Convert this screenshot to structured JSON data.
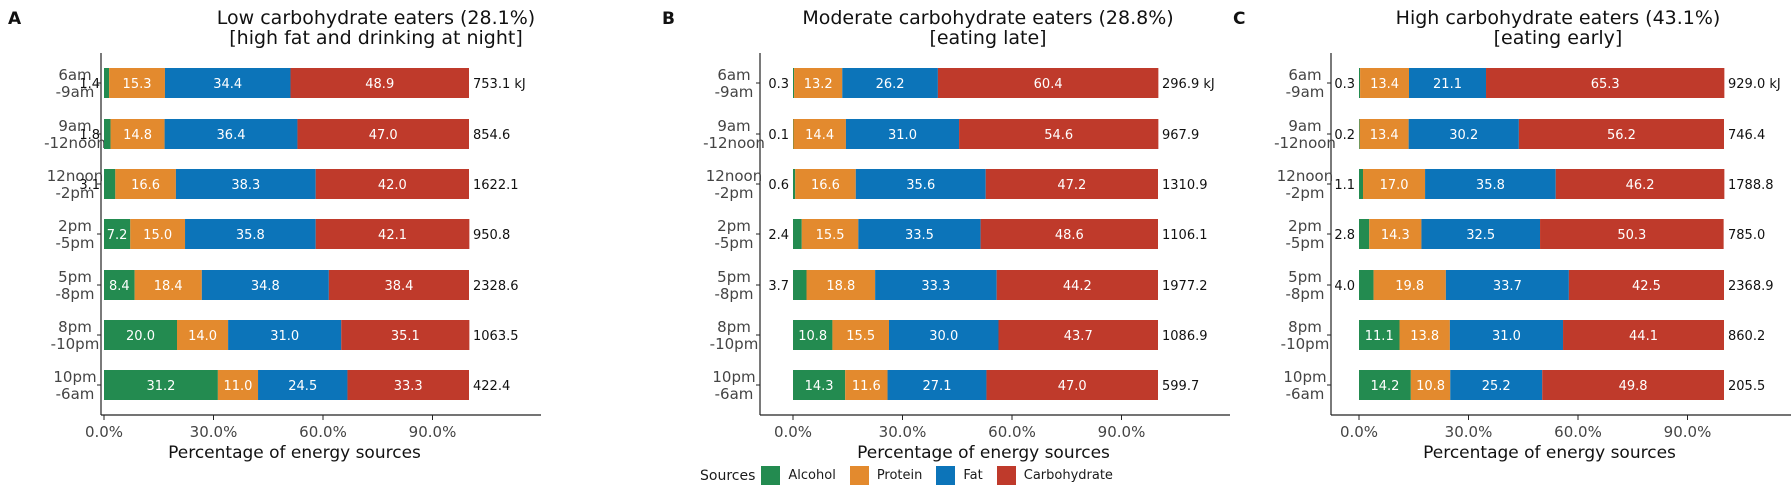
{
  "colors": {
    "Alcohol": "#238b50",
    "Protein": "#e38a2e",
    "Fat": "#0c74b9",
    "Carbohydrate": "#bf3a2b"
  },
  "legend": {
    "title": "Sources",
    "items": [
      "Alcohol",
      "Protein",
      "Fat",
      "Carbohydrate"
    ]
  },
  "chart_data": [
    {
      "type": "bar",
      "orientation": "horizontal",
      "stacked": true,
      "panel_letter": "A",
      "title_line1": "Low carbohydrate eaters (28.1%)",
      "title_line2": "[high fat and drinking at night]",
      "xlabel": "Percentage of energy sources",
      "xlim": [
        0,
        100
      ],
      "x_ticks": [
        "0.0%",
        "30.0%",
        "60.0%",
        "90.0%"
      ],
      "categories": [
        "6am -9am",
        "9am -12noon",
        "12noon -2pm",
        "2pm -5pm",
        "5pm -8pm",
        "8pm -10pm",
        "10pm -6am"
      ],
      "category_lines": [
        [
          "6am",
          "-9am"
        ],
        [
          "9am",
          "-12noon"
        ],
        [
          "12noon",
          "-2pm"
        ],
        [
          "2pm",
          "-5pm"
        ],
        [
          "5pm",
          "-8pm"
        ],
        [
          "8pm",
          "-10pm"
        ],
        [
          "10pm",
          "-6am"
        ]
      ],
      "series": [
        {
          "name": "Alcohol",
          "values": [
            1.4,
            1.8,
            3.1,
            7.2,
            8.4,
            20.0,
            31.2
          ]
        },
        {
          "name": "Protein",
          "values": [
            15.3,
            14.8,
            16.6,
            15.0,
            18.4,
            14.0,
            11.0
          ]
        },
        {
          "name": "Fat",
          "values": [
            34.4,
            36.4,
            38.3,
            35.8,
            34.8,
            31.0,
            24.5
          ]
        },
        {
          "name": "Carbohydrate",
          "values": [
            48.9,
            47.0,
            42.0,
            42.1,
            38.4,
            35.1,
            33.3
          ]
        }
      ],
      "alcohol_label_outside": [
        true,
        true,
        true,
        false,
        false,
        false,
        false
      ],
      "energy_totals": [
        "753.1 kJ",
        "854.6",
        "1622.1",
        "950.8",
        "2328.6",
        "1063.5",
        "422.4"
      ]
    },
    {
      "type": "bar",
      "orientation": "horizontal",
      "stacked": true,
      "panel_letter": "B",
      "title_line1": "Moderate carbohydrate eaters (28.8%)",
      "title_line2": "[eating late]",
      "xlabel": "Percentage of energy sources",
      "xlim": [
        0,
        100
      ],
      "x_ticks": [
        "0.0%",
        "30.0%",
        "60.0%",
        "90.0%"
      ],
      "categories": [
        "6am -9am",
        "9am -12noon",
        "12noon -2pm",
        "2pm -5pm",
        "5pm -8pm",
        "8pm -10pm",
        "10pm -6am"
      ],
      "category_lines": [
        [
          "6am",
          "-9am"
        ],
        [
          "9am",
          "-12noon"
        ],
        [
          "12noon",
          "-2pm"
        ],
        [
          "2pm",
          "-5pm"
        ],
        [
          "5pm",
          "-8pm"
        ],
        [
          "8pm",
          "-10pm"
        ],
        [
          "10pm",
          "-6am"
        ]
      ],
      "series": [
        {
          "name": "Alcohol",
          "values": [
            0.3,
            0.1,
            0.6,
            2.4,
            3.7,
            10.8,
            14.3
          ]
        },
        {
          "name": "Protein",
          "values": [
            13.2,
            14.4,
            16.6,
            15.5,
            18.8,
            15.5,
            11.6
          ]
        },
        {
          "name": "Fat",
          "values": [
            26.2,
            31.0,
            35.6,
            33.5,
            33.3,
            30.0,
            27.1
          ]
        },
        {
          "name": "Carbohydrate",
          "values": [
            60.4,
            54.6,
            47.2,
            48.6,
            44.2,
            43.7,
            47.0
          ]
        }
      ],
      "alcohol_label_outside": [
        true,
        true,
        true,
        true,
        true,
        false,
        false
      ],
      "energy_totals": [
        "296.9 kJ",
        "967.9",
        "1310.9",
        "1106.1",
        "1977.2",
        "1086.9",
        "599.7"
      ]
    },
    {
      "type": "bar",
      "orientation": "horizontal",
      "stacked": true,
      "panel_letter": "C",
      "title_line1": "High carbohydrate eaters (43.1%)",
      "title_line2": "[eating early]",
      "xlabel": "Percentage of energy sources",
      "xlim": [
        0,
        100
      ],
      "x_ticks": [
        "0.0%",
        "30.0%",
        "60.0%",
        "90.0%"
      ],
      "categories": [
        "6am -9am",
        "9am -12noon",
        "12noon -2pm",
        "2pm -5pm",
        "5pm -8pm",
        "8pm -10pm",
        "10pm -6am"
      ],
      "category_lines": [
        [
          "6am",
          "-9am"
        ],
        [
          "9am",
          "-12noon"
        ],
        [
          "12noon",
          "-2pm"
        ],
        [
          "2pm",
          "-5pm"
        ],
        [
          "5pm",
          "-8pm"
        ],
        [
          "8pm",
          "-10pm"
        ],
        [
          "10pm",
          "-6am"
        ]
      ],
      "series": [
        {
          "name": "Alcohol",
          "values": [
            0.3,
            0.2,
            1.1,
            2.8,
            4.0,
            11.1,
            14.2
          ]
        },
        {
          "name": "Protein",
          "values": [
            13.4,
            13.4,
            17.0,
            14.3,
            19.8,
            13.8,
            10.8
          ]
        },
        {
          "name": "Fat",
          "values": [
            21.1,
            30.2,
            35.8,
            32.5,
            33.7,
            31.0,
            25.2
          ]
        },
        {
          "name": "Carbohydrate",
          "values": [
            65.3,
            56.2,
            46.2,
            50.3,
            42.5,
            44.1,
            49.8
          ]
        }
      ],
      "alcohol_label_outside": [
        true,
        true,
        true,
        true,
        true,
        false,
        false
      ],
      "energy_totals": [
        "929.0 kJ",
        "746.4",
        "1788.8",
        "785.0",
        "2368.9",
        "860.2",
        "205.5"
      ]
    }
  ]
}
